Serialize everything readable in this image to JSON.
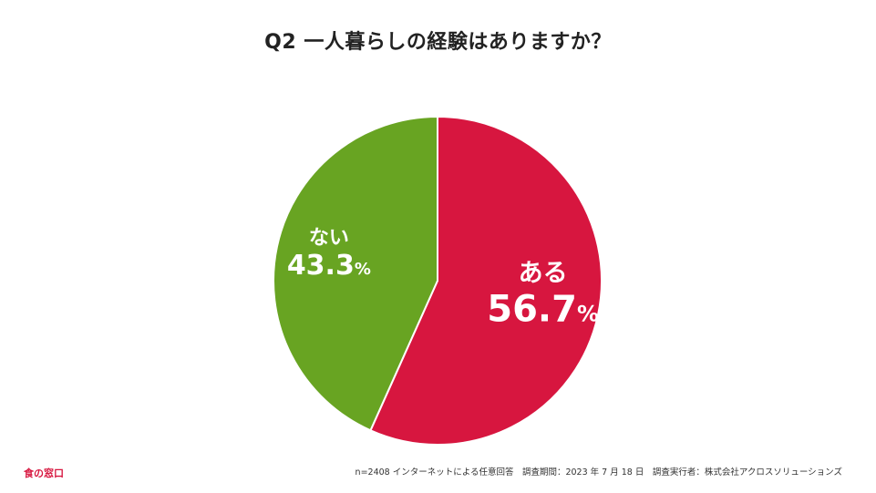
{
  "page": {
    "title": "Q2 一人暮らしの経験はありますか？",
    "logo_text": "食の窓口",
    "footnote": "n=2408 インターネットによる任意回答　調査期間：2023 年 7 月 18 日　調査実行者：株式会社アクロスソリューションズ"
  },
  "chart_data": {
    "type": "pie",
    "title": "Q2 一人暮らしの経験はありますか？",
    "unit": "%",
    "slices": [
      {
        "label": "ある",
        "value": 56.7,
        "value_text": "56.7",
        "color": "#d7163f"
      },
      {
        "label": "ない",
        "value": 43.3,
        "value_text": "43.3",
        "color": "#68a422"
      }
    ],
    "start": "top",
    "direction": "clockwise"
  }
}
